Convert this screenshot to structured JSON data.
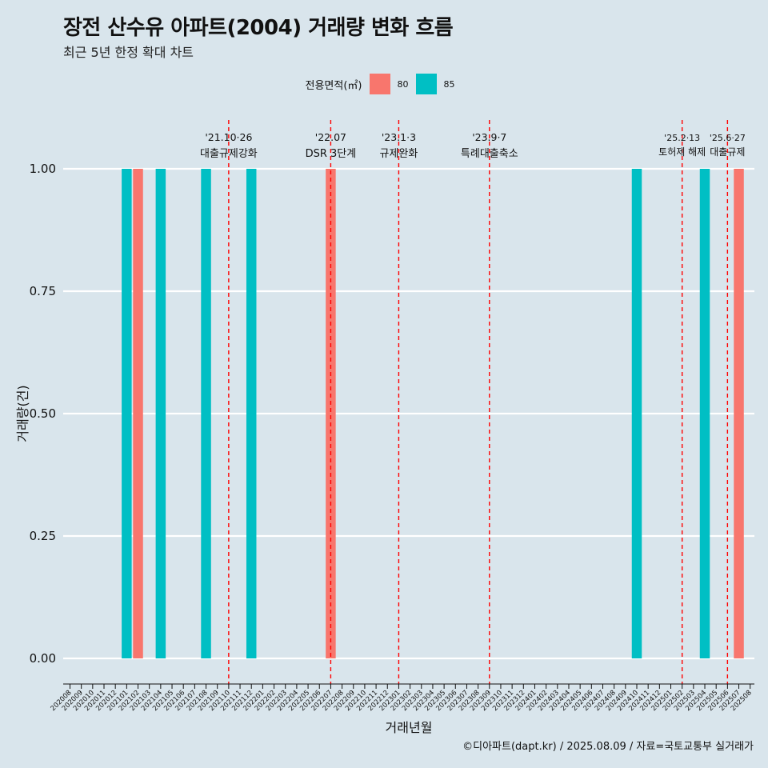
{
  "title": "장전 산수유 아파트(2004) 거래량 변화 흐름",
  "subtitle": "최근 5년 한정 확대 차트",
  "caption": "©디아파트(dapt.kr) / 2025.08.09 / 자료=국토교통부 실거래가",
  "legend_title": "전용면적(㎡)",
  "colors": {
    "80": "#f8766d",
    "85": "#00bfc4",
    "event_line": "#ff0000",
    "background": "#d9e5ec",
    "grid": "#ffffff"
  },
  "chart_data": {
    "type": "bar",
    "title": "장전 산수유 아파트(2004) 거래량 변화 흐름",
    "subtitle": "최근 5년 한정 확대 차트",
    "xlabel": "거래년월",
    "ylabel": "거래량(건)",
    "ylim": [
      0,
      1
    ],
    "yticks": [
      "0.00",
      "0.25",
      "0.50",
      "0.75",
      "1.00"
    ],
    "grid": true,
    "legend_placement": "top",
    "categories": [
      "202008",
      "202009",
      "202010",
      "202011",
      "202012",
      "202101",
      "202102",
      "202103",
      "202104",
      "202105",
      "202106",
      "202107",
      "202108",
      "202109",
      "202110",
      "202111",
      "202112",
      "202201",
      "202202",
      "202203",
      "202204",
      "202205",
      "202206",
      "202207",
      "202208",
      "202209",
      "202210",
      "202211",
      "202212",
      "202301",
      "202302",
      "202303",
      "202304",
      "202305",
      "202306",
      "202307",
      "202308",
      "202309",
      "202310",
      "202311",
      "202312",
      "202401",
      "202402",
      "202403",
      "202404",
      "202405",
      "202406",
      "202407",
      "202408",
      "202409",
      "202410",
      "202411",
      "202412",
      "202501",
      "202502",
      "202503",
      "202504",
      "202505",
      "202506",
      "202507",
      "202508"
    ],
    "series": [
      {
        "name": "80",
        "color": "#f8766d",
        "points": [
          {
            "x": "202102",
            "y": 1
          },
          {
            "x": "202207",
            "y": 1
          },
          {
            "x": "202507",
            "y": 1
          }
        ]
      },
      {
        "name": "85",
        "color": "#00bfc4",
        "points": [
          {
            "x": "202101",
            "y": 1
          },
          {
            "x": "202104",
            "y": 1
          },
          {
            "x": "202108",
            "y": 1
          },
          {
            "x": "202112",
            "y": 1
          },
          {
            "x": "202410",
            "y": 1
          },
          {
            "x": "202504",
            "y": 1
          }
        ]
      }
    ],
    "annotations": [
      {
        "x": "202110",
        "date": "'21.10·26",
        "label": "대출규제강화"
      },
      {
        "x": "202207",
        "date": "'22.07",
        "label": "DSR 3단계"
      },
      {
        "x": "202301",
        "date": "'23.1·3",
        "label": "규제완화"
      },
      {
        "x": "202309",
        "date": "'23.9·7",
        "label": "특례대출축소"
      },
      {
        "x": "202502",
        "date": "'25.2·13",
        "label": "토허제 해제"
      },
      {
        "x": "202506",
        "date": "'25.6·27",
        "label": "대출규제"
      }
    ]
  }
}
